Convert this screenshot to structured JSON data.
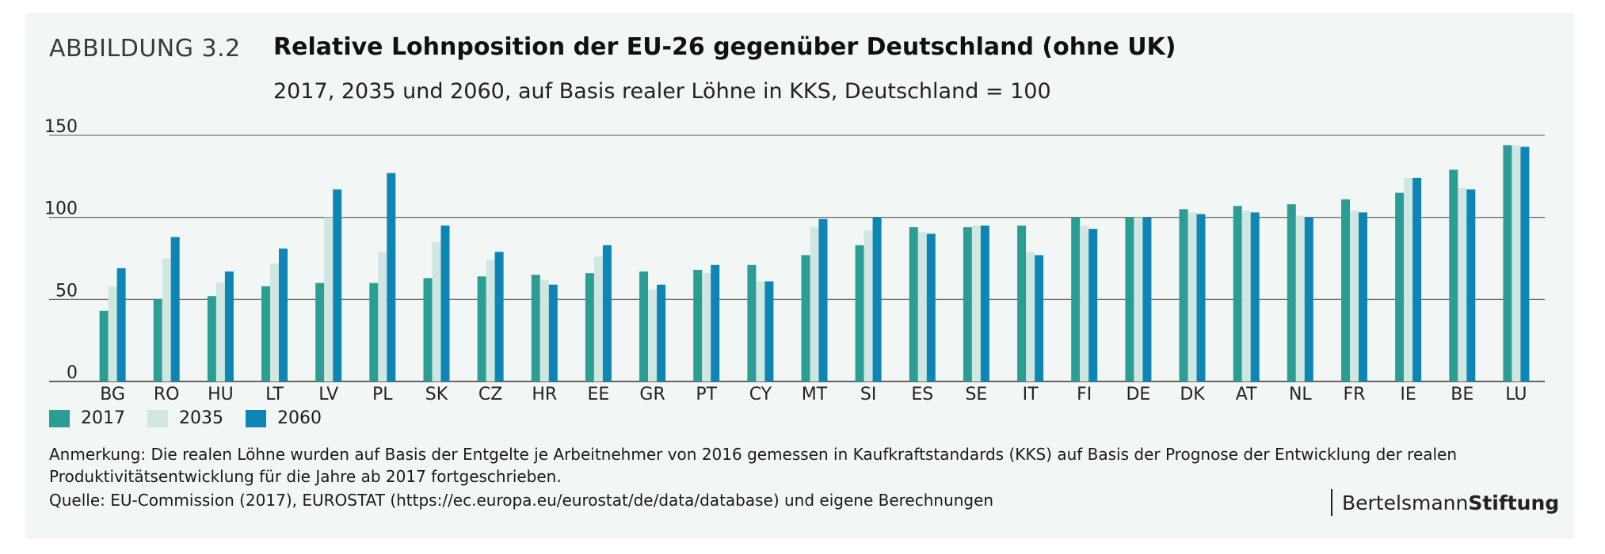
{
  "figure_label": "ABBILDUNG 3.2",
  "title": "Relative Lohnposition der EU-26 gegenüber Deutschland (ohne UK)",
  "subtitle": "2017, 2035 und 2060, auf Basis realer Löhne in KKS, Deutschland = 100",
  "note": "Anmerkung: Die realen Löhne wurden auf Basis der Entgelte je Arbeitnehmer von 2016 gemessen in Kaufkraftstandards (KKS) auf Basis der Prognose der Entwicklung der realen Produktivitätsentwicklung für die Jahre ab 2017 fortgeschrieben.",
  "source": "Quelle: EU-Commission (2017), EUROSTAT (https://ec.europa.eu/eurostat/de/data/database) und eigene Berechnungen",
  "logo": {
    "regular": "Bertelsmann",
    "bold": "Stiftung"
  },
  "colors": {
    "2017": "#2a9d95",
    "2035": "#cfe6e1",
    "2060": "#0d86b6",
    "background": "#f2f6f4",
    "gridline": "#555555"
  },
  "chart_data": {
    "type": "bar",
    "categories": [
      "BG",
      "RO",
      "HU",
      "LT",
      "LV",
      "PL",
      "SK",
      "CZ",
      "HR",
      "EE",
      "GR",
      "PT",
      "CY",
      "MT",
      "SI",
      "ES",
      "SE",
      "IT",
      "FI",
      "DE",
      "DK",
      "AT",
      "NL",
      "FR",
      "IE",
      "BE",
      "LU"
    ],
    "series": [
      {
        "name": "2017",
        "values": [
          43,
          50,
          52,
          58,
          60,
          60,
          63,
          64,
          65,
          66,
          67,
          68,
          71,
          77,
          83,
          94,
          94,
          95,
          100,
          100,
          105,
          107,
          108,
          111,
          115,
          129,
          144
        ]
      },
      {
        "name": "2035",
        "values": [
          58,
          75,
          60,
          72,
          100,
          79,
          85,
          74,
          62,
          76,
          56,
          66,
          61,
          94,
          92,
          91,
          95,
          79,
          95,
          100,
          103,
          104,
          101,
          104,
          124,
          118,
          144
        ]
      },
      {
        "name": "2060",
        "values": [
          69,
          88,
          67,
          81,
          117,
          127,
          95,
          79,
          59,
          83,
          59,
          71,
          61,
          99,
          100,
          90,
          95,
          77,
          93,
          100,
          102,
          103,
          100,
          103,
          124,
          117,
          143
        ]
      }
    ],
    "yticks": [
      0,
      50,
      100,
      150
    ],
    "ylim": [
      0,
      150
    ],
    "grid": true,
    "legend_position": "bottom-left"
  }
}
